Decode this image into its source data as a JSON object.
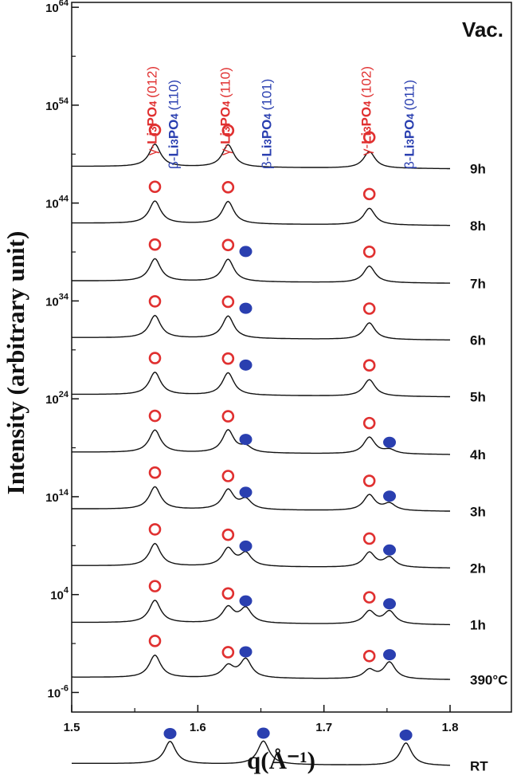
{
  "chart_data": {
    "type": "line",
    "xlabel": "q(Å⁻¹)",
    "ylabel": "Intensity (arbitrary unit)",
    "corner_label": "Vac.",
    "xlim": [
      1.5,
      1.8
    ],
    "x_ticks": [
      "1.5",
      "1.6",
      "1.7",
      "1.8"
    ],
    "y_scale": "log",
    "y_ticks": [
      {
        "base": "10",
        "exp": "-6",
        "log": -6
      },
      {
        "base": "10",
        "exp": "4",
        "log": 4
      },
      {
        "base": "10",
        "exp": "14",
        "log": 14
      },
      {
        "base": "10",
        "exp": "24",
        "log": 24
      },
      {
        "base": "10",
        "exp": "34",
        "log": 34
      },
      {
        "base": "10",
        "exp": "44",
        "log": 44
      },
      {
        "base": "10",
        "exp": "54",
        "log": 54
      },
      {
        "base": "10",
        "exp": "64",
        "log": 64
      }
    ],
    "colors": {
      "gamma": "#e03030",
      "beta": "#2a3fb0",
      "curve": "#111111"
    },
    "peak_labels": [
      {
        "prefix": "γ-",
        "main": "Li3PO4",
        "hkl": "(012)",
        "phase": "gamma",
        "x": 1.566
      },
      {
        "prefix": "β-",
        "main": "Li3PO4",
        "hkl": "(110)",
        "phase": "beta",
        "x": 1.578
      },
      {
        "prefix": "γ-",
        "main": "Li3PO4",
        "hkl": "(110)",
        "phase": "gamma",
        "x": 1.624
      },
      {
        "prefix": "β-",
        "main": "Li3PO4",
        "hkl": "(101)",
        "phase": "beta",
        "x": 1.652
      },
      {
        "prefix": "γ-",
        "main": "Li3PO4",
        "hkl": "(102)",
        "phase": "gamma",
        "x": 1.736
      },
      {
        "prefix": "β-",
        "main": "Li3PO4",
        "hkl": "(011)",
        "phase": "beta",
        "x": 1.765
      }
    ],
    "series": [
      {
        "name": "9h",
        "baseline_log": 47.5,
        "peaks": [
          {
            "x": 1.566,
            "h": 2.3
          },
          {
            "x": 1.624,
            "h": 2.3
          },
          {
            "x": 1.736,
            "h": 1.7
          }
        ],
        "markers": [
          {
            "x": 1.566,
            "phase": "gamma"
          },
          {
            "x": 1.624,
            "phase": "gamma"
          },
          {
            "x": 1.736,
            "phase": "gamma"
          }
        ]
      },
      {
        "name": "8h",
        "baseline_log": 41.7,
        "peaks": [
          {
            "x": 1.566,
            "h": 2.3
          },
          {
            "x": 1.624,
            "h": 2.3
          },
          {
            "x": 1.736,
            "h": 1.7
          }
        ],
        "markers": [
          {
            "x": 1.566,
            "phase": "gamma"
          },
          {
            "x": 1.624,
            "phase": "gamma"
          },
          {
            "x": 1.736,
            "phase": "gamma"
          }
        ]
      },
      {
        "name": "7h",
        "baseline_log": 35.8,
        "peaks": [
          {
            "x": 1.566,
            "h": 2.3
          },
          {
            "x": 1.624,
            "h": 2.3
          },
          {
            "x": 1.736,
            "h": 1.7
          }
        ],
        "markers": [
          {
            "x": 1.566,
            "phase": "gamma"
          },
          {
            "x": 1.624,
            "phase": "gamma"
          },
          {
            "x": 1.638,
            "phase": "beta"
          },
          {
            "x": 1.736,
            "phase": "gamma"
          }
        ]
      },
      {
        "name": "6h",
        "baseline_log": 30.0,
        "peaks": [
          {
            "x": 1.566,
            "h": 2.3
          },
          {
            "x": 1.624,
            "h": 2.3
          },
          {
            "x": 1.736,
            "h": 1.7
          }
        ],
        "markers": [
          {
            "x": 1.566,
            "phase": "gamma"
          },
          {
            "x": 1.624,
            "phase": "gamma"
          },
          {
            "x": 1.638,
            "phase": "beta"
          },
          {
            "x": 1.736,
            "phase": "gamma"
          }
        ]
      },
      {
        "name": "5h",
        "baseline_log": 24.2,
        "peaks": [
          {
            "x": 1.566,
            "h": 2.3
          },
          {
            "x": 1.624,
            "h": 2.3
          },
          {
            "x": 1.736,
            "h": 1.7
          }
        ],
        "markers": [
          {
            "x": 1.566,
            "phase": "gamma"
          },
          {
            "x": 1.624,
            "phase": "gamma"
          },
          {
            "x": 1.638,
            "phase": "beta"
          },
          {
            "x": 1.736,
            "phase": "gamma"
          }
        ]
      },
      {
        "name": "4h",
        "baseline_log": 18.3,
        "peaks": [
          {
            "x": 1.566,
            "h": 2.3
          },
          {
            "x": 1.624,
            "h": 2.3
          },
          {
            "x": 1.638,
            "h": 0.6
          },
          {
            "x": 1.736,
            "h": 1.7
          },
          {
            "x": 1.752,
            "h": 0.4
          }
        ],
        "markers": [
          {
            "x": 1.566,
            "phase": "gamma"
          },
          {
            "x": 1.624,
            "phase": "gamma"
          },
          {
            "x": 1.638,
            "phase": "beta"
          },
          {
            "x": 1.736,
            "phase": "gamma"
          },
          {
            "x": 1.752,
            "phase": "beta"
          }
        ]
      },
      {
        "name": "3h",
        "baseline_log": 12.5,
        "peaks": [
          {
            "x": 1.566,
            "h": 2.3
          },
          {
            "x": 1.624,
            "h": 2.0
          },
          {
            "x": 1.638,
            "h": 1.0
          },
          {
            "x": 1.736,
            "h": 1.6
          },
          {
            "x": 1.752,
            "h": 0.7
          }
        ],
        "markers": [
          {
            "x": 1.566,
            "phase": "gamma"
          },
          {
            "x": 1.624,
            "phase": "gamma"
          },
          {
            "x": 1.638,
            "phase": "beta"
          },
          {
            "x": 1.736,
            "phase": "gamma"
          },
          {
            "x": 1.752,
            "phase": "beta"
          }
        ]
      },
      {
        "name": "2h",
        "baseline_log": 6.7,
        "peaks": [
          {
            "x": 1.566,
            "h": 2.3
          },
          {
            "x": 1.624,
            "h": 1.8
          },
          {
            "x": 1.638,
            "h": 1.3
          },
          {
            "x": 1.736,
            "h": 1.5
          },
          {
            "x": 1.752,
            "h": 1.0
          }
        ],
        "markers": [
          {
            "x": 1.566,
            "phase": "gamma"
          },
          {
            "x": 1.624,
            "phase": "gamma"
          },
          {
            "x": 1.638,
            "phase": "beta"
          },
          {
            "x": 1.736,
            "phase": "gamma"
          },
          {
            "x": 1.752,
            "phase": "beta"
          }
        ]
      },
      {
        "name": "1h",
        "baseline_log": 0.9,
        "peaks": [
          {
            "x": 1.566,
            "h": 2.3
          },
          {
            "x": 1.624,
            "h": 1.6
          },
          {
            "x": 1.638,
            "h": 1.5
          },
          {
            "x": 1.736,
            "h": 1.3
          },
          {
            "x": 1.752,
            "h": 1.3
          }
        ],
        "markers": [
          {
            "x": 1.566,
            "phase": "gamma"
          },
          {
            "x": 1.624,
            "phase": "gamma"
          },
          {
            "x": 1.638,
            "phase": "beta"
          },
          {
            "x": 1.736,
            "phase": "gamma"
          },
          {
            "x": 1.752,
            "phase": "beta"
          }
        ]
      },
      {
        "name": "390°C",
        "baseline_log": -4.7,
        "peaks": [
          {
            "x": 1.566,
            "h": 2.3
          },
          {
            "x": 1.624,
            "h": 1.2
          },
          {
            "x": 1.638,
            "h": 1.9
          },
          {
            "x": 1.736,
            "h": 0.9
          },
          {
            "x": 1.752,
            "h": 1.7
          }
        ],
        "markers": [
          {
            "x": 1.566,
            "phase": "gamma"
          },
          {
            "x": 1.624,
            "phase": "gamma"
          },
          {
            "x": 1.638,
            "phase": "beta"
          },
          {
            "x": 1.736,
            "phase": "gamma"
          },
          {
            "x": 1.752,
            "phase": "beta"
          }
        ]
      },
      {
        "name": "RT",
        "baseline_log": -13.5,
        "peaks": [
          {
            "x": 1.578,
            "h": 2.3
          },
          {
            "x": 1.652,
            "h": 2.4
          },
          {
            "x": 1.765,
            "h": 2.3
          }
        ],
        "markers": [
          {
            "x": 1.578,
            "phase": "beta"
          },
          {
            "x": 1.652,
            "phase": "beta"
          },
          {
            "x": 1.765,
            "phase": "beta"
          }
        ]
      }
    ]
  }
}
